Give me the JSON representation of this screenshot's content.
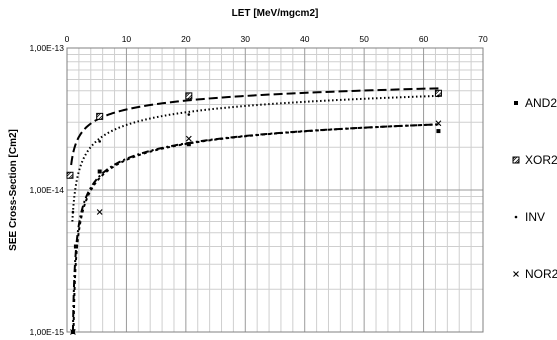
{
  "chart_data": {
    "type": "scatter",
    "title": "",
    "xlabel": "LET [MeV/mgcm2]",
    "ylabel": "SEE Cross-Section [Cm2]",
    "x_axis_position": "top",
    "y_scale": "log",
    "xlim": [
      0,
      70
    ],
    "ylim": [
      1e-15,
      1e-13
    ],
    "x_ticks": [
      0,
      10,
      20,
      30,
      40,
      50,
      60,
      70
    ],
    "x_tick_labels": [
      "0",
      "10",
      "20",
      "30",
      "40",
      "50",
      "60",
      "70"
    ],
    "y_ticks": [
      1e-15,
      1e-14,
      1e-13
    ],
    "y_tick_labels": [
      "1,00E-15",
      "1,00E-14",
      "1,00E-13"
    ],
    "grid": true,
    "legend_position": "right",
    "series": [
      {
        "name": "AND2",
        "marker": "square-dot",
        "line_style": "dash-dot",
        "color": "#000000",
        "x": [
          1.0,
          1.5,
          5.5,
          20.5,
          62.5
        ],
        "y": [
          1e-15,
          4e-15,
          1.35e-14,
          2.1e-14,
          2.6e-14
        ],
        "fit": {
          "type": "log",
          "x_range": [
            1.0,
            62.5
          ],
          "y_at_min": 1e-15,
          "y_at_max": 2.9e-14
        }
      },
      {
        "name": "XOR2",
        "marker": "hatched-square",
        "line_style": "long-dash",
        "color": "#000000",
        "x": [
          0.5,
          5.5,
          20.5,
          62.5
        ],
        "y": [
          1.27e-14,
          3.3e-14,
          4.6e-14,
          4.8e-14
        ],
        "fit": {
          "type": "log",
          "x_range": [
            0.7,
            62.5
          ],
          "y_at_min": 1.5e-14,
          "y_at_max": 5.2e-14
        }
      },
      {
        "name": "INV",
        "marker": "small-dot",
        "line_style": "dotted",
        "color": "#000000",
        "x": [
          1.0,
          5.5,
          20.5,
          62.5
        ],
        "y": [
          7e-15,
          2.2e-14,
          3.4e-14,
          4.6e-14
        ],
        "fit": {
          "type": "log",
          "x_range": [
            0.9,
            62.5
          ],
          "y_at_min": 6e-15,
          "y_at_max": 4.6e-14
        }
      },
      {
        "name": "NOR2",
        "marker": "x",
        "line_style": "short-dash",
        "color": "#000000",
        "x": [
          1.0,
          5.5,
          20.5,
          62.5
        ],
        "y": [
          1e-15,
          7e-15,
          2.3e-14,
          2.95e-14
        ],
        "fit": {
          "type": "log",
          "x_range": [
            1.1,
            62.5
          ],
          "y_at_min": 1e-15,
          "y_at_max": 2.9e-14
        }
      }
    ]
  }
}
